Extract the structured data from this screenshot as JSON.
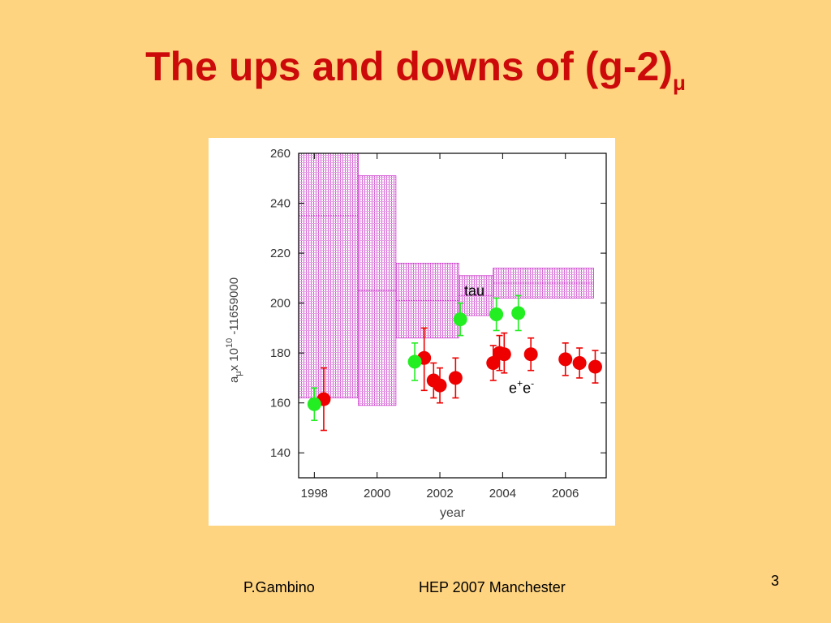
{
  "slide": {
    "title_main": "The ups and downs of (g-2)",
    "title_sub": "μ",
    "footer_author": "P.Gambino",
    "footer_event": "HEP 2007 Manchester",
    "page_number": "3"
  },
  "colors": {
    "background": "#FFD480",
    "title": "#CC0A0A",
    "band": "#CC33CC",
    "ee_points": "#EE0000",
    "tau_points": "#22EE22"
  },
  "chart_data": {
    "type": "scatter",
    "title": "",
    "xlabel": "year",
    "ylabel": "aμ x 10^10 -11659000",
    "ylabel_parts": {
      "main": "a",
      "sub": "μ",
      "mid": "x 10",
      "sup": "10",
      "tail": " -11659000"
    },
    "xlim": [
      1997.5,
      2007.3
    ],
    "ylim": [
      130,
      260
    ],
    "xticks": [
      1998,
      2000,
      2002,
      2004,
      2006
    ],
    "yticks": [
      140,
      160,
      180,
      200,
      220,
      240,
      260
    ],
    "grid": false,
    "annotations": [
      {
        "text": "tau",
        "x": 2003.1,
        "y": 203
      },
      {
        "text": "e+e-",
        "base": "e",
        "sup1": "+",
        "base2": "e",
        "sup2": "-",
        "x": 2004.6,
        "y": 164
      }
    ],
    "bands": [
      {
        "x0": 1997.5,
        "x1": 1999.4,
        "center": 235,
        "low": 162,
        "high": 260
      },
      {
        "x0": 1999.4,
        "x1": 2000.6,
        "center": 205,
        "low": 159,
        "high": 251
      },
      {
        "x0": 2000.6,
        "x1": 2002.6,
        "center": 201,
        "low": 186,
        "high": 216
      },
      {
        "x0": 2002.6,
        "x1": 2003.7,
        "center": 203,
        "low": 195,
        "high": 211
      },
      {
        "x0": 2003.7,
        "x1": 2006.9,
        "center": 208,
        "low": 202,
        "high": 214
      }
    ],
    "series": [
      {
        "label": "e+e-",
        "color": "#EE0000",
        "points": [
          {
            "x": 1998.3,
            "y": 161.5,
            "lo": 149,
            "hi": 174
          },
          {
            "x": 2001.5,
            "y": 178,
            "lo": 165,
            "hi": 190
          },
          {
            "x": 2001.8,
            "y": 169,
            "lo": 162,
            "hi": 176
          },
          {
            "x": 2002.0,
            "y": 167,
            "lo": 160,
            "hi": 174
          },
          {
            "x": 2002.5,
            "y": 170,
            "lo": 162,
            "hi": 178
          },
          {
            "x": 2003.7,
            "y": 176,
            "lo": 169,
            "hi": 183
          },
          {
            "x": 2003.9,
            "y": 180,
            "lo": 173,
            "hi": 187
          },
          {
            "x": 2004.05,
            "y": 179.5,
            "lo": 172,
            "hi": 188
          },
          {
            "x": 2004.9,
            "y": 179.5,
            "lo": 173,
            "hi": 186
          },
          {
            "x": 2006.0,
            "y": 177.5,
            "lo": 171,
            "hi": 184
          },
          {
            "x": 2006.45,
            "y": 176,
            "lo": 170,
            "hi": 182
          },
          {
            "x": 2006.95,
            "y": 174.5,
            "lo": 168,
            "hi": 181
          }
        ]
      },
      {
        "label": "tau",
        "color": "#22EE22",
        "points": [
          {
            "x": 1998.0,
            "y": 159.5,
            "lo": 153,
            "hi": 166
          },
          {
            "x": 2001.2,
            "y": 176.5,
            "lo": 169,
            "hi": 184
          },
          {
            "x": 2002.65,
            "y": 193.5,
            "lo": 187,
            "hi": 200
          },
          {
            "x": 2003.8,
            "y": 195.5,
            "lo": 189,
            "hi": 202
          },
          {
            "x": 2004.5,
            "y": 196,
            "lo": 189,
            "hi": 203
          }
        ]
      }
    ]
  }
}
